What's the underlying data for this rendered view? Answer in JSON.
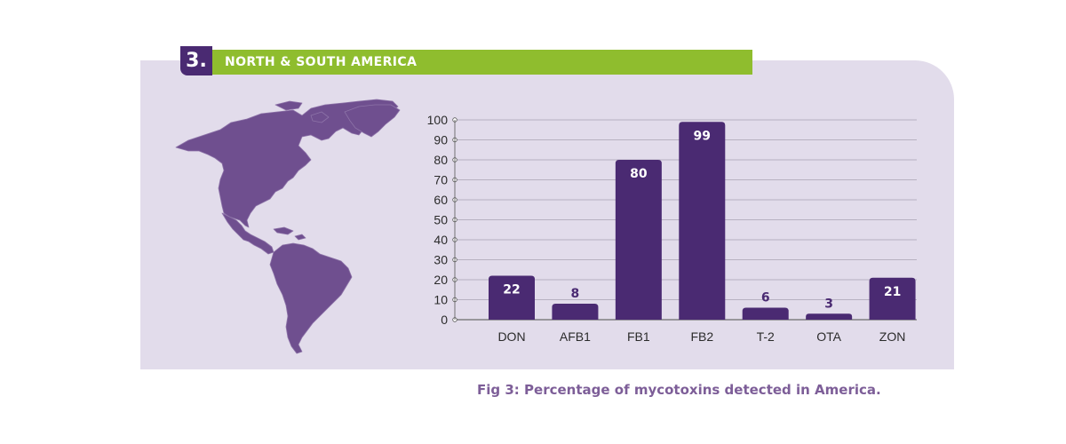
{
  "section": {
    "number": "3.",
    "title": "NORTH & SOUTH AMERICA"
  },
  "caption": {
    "prefix": "Fig 3:",
    "text": "Percentage of mycotoxins detected in America."
  },
  "colors": {
    "bar": "#4a2a72",
    "banner": "#8fbd2e",
    "panel": "#e2dceb",
    "map": "#6f4f8f"
  },
  "chart_data": {
    "type": "bar",
    "categories": [
      "DON",
      "AFB1",
      "FB1",
      "FB2",
      "T-2",
      "OTA",
      "ZON"
    ],
    "values": [
      22,
      8,
      80,
      99,
      6,
      3,
      21
    ],
    "title": "",
    "xlabel": "",
    "ylabel": "",
    "ylim": [
      0,
      100
    ],
    "yticks": [
      0,
      10,
      20,
      30,
      40,
      50,
      60,
      70,
      80,
      90,
      100
    ],
    "grid": true
  }
}
